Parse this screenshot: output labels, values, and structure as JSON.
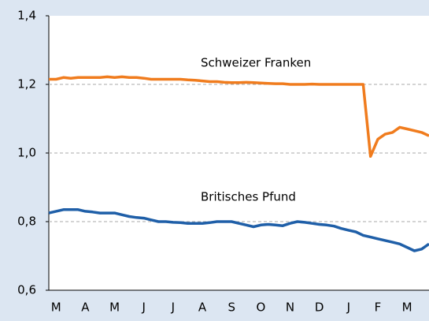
{
  "chart_data": {
    "type": "line",
    "xlim": [
      -0.25,
      12.75
    ],
    "xticks": [
      {
        "value": 0,
        "label": "M"
      },
      {
        "value": 1,
        "label": "A"
      },
      {
        "value": 2,
        "label": "M"
      },
      {
        "value": 3,
        "label": "J"
      },
      {
        "value": 4,
        "label": "J"
      },
      {
        "value": 5,
        "label": "A"
      },
      {
        "value": 6,
        "label": "S"
      },
      {
        "value": 7,
        "label": "O"
      },
      {
        "value": 8,
        "label": "N"
      },
      {
        "value": 9,
        "label": "D"
      },
      {
        "value": 10,
        "label": "J"
      },
      {
        "value": 11,
        "label": "F"
      },
      {
        "value": 12,
        "label": "M"
      }
    ],
    "ylim": [
      0.6,
      1.4
    ],
    "yticks": [
      {
        "value": 0.6,
        "label": "0,6"
      },
      {
        "value": 0.8,
        "label": "0,8"
      },
      {
        "value": 1.0,
        "label": "1,0"
      },
      {
        "value": 1.2,
        "label": "1,2"
      },
      {
        "value": 1.4,
        "label": "1,4"
      }
    ],
    "grid": true,
    "x": [
      -0.25,
      0,
      0.25,
      0.5,
      0.75,
      1,
      1.25,
      1.5,
      1.75,
      2,
      2.25,
      2.5,
      2.75,
      3,
      3.25,
      3.5,
      3.75,
      4,
      4.25,
      4.5,
      4.75,
      5,
      5.25,
      5.5,
      5.75,
      6,
      6.25,
      6.5,
      6.75,
      7,
      7.25,
      7.5,
      7.75,
      8,
      8.25,
      8.5,
      8.75,
      9,
      9.25,
      9.5,
      9.75,
      10,
      10.25,
      10.5,
      10.75,
      11,
      11.25,
      11.5,
      11.75,
      12,
      12.25,
      12.5,
      12.75
    ],
    "series": [
      {
        "name": "Schweizer Franken",
        "color": "#f07c1e",
        "values": [
          1.215,
          1.215,
          1.22,
          1.218,
          1.22,
          1.22,
          1.22,
          1.22,
          1.222,
          1.22,
          1.222,
          1.22,
          1.22,
          1.218,
          1.215,
          1.215,
          1.215,
          1.215,
          1.215,
          1.213,
          1.212,
          1.21,
          1.208,
          1.208,
          1.206,
          1.205,
          1.205,
          1.206,
          1.205,
          1.204,
          1.203,
          1.202,
          1.202,
          1.2,
          1.2,
          1.2,
          1.201,
          1.2,
          1.2,
          1.2,
          1.2,
          1.2,
          1.2,
          1.2,
          0.99,
          1.04,
          1.055,
          1.06,
          1.075,
          1.07,
          1.065,
          1.06,
          1.05
        ]
      },
      {
        "name": "Britisches Pfund",
        "color": "#1f5fa8",
        "values": [
          0.825,
          0.83,
          0.835,
          0.835,
          0.835,
          0.83,
          0.828,
          0.825,
          0.825,
          0.825,
          0.82,
          0.815,
          0.812,
          0.81,
          0.805,
          0.8,
          0.8,
          0.798,
          0.797,
          0.795,
          0.795,
          0.795,
          0.797,
          0.8,
          0.8,
          0.8,
          0.795,
          0.79,
          0.785,
          0.79,
          0.792,
          0.79,
          0.788,
          0.795,
          0.8,
          0.798,
          0.795,
          0.792,
          0.79,
          0.787,
          0.78,
          0.775,
          0.77,
          0.76,
          0.755,
          0.75,
          0.745,
          0.74,
          0.735,
          0.725,
          0.715,
          0.72,
          0.735
        ]
      }
    ]
  }
}
